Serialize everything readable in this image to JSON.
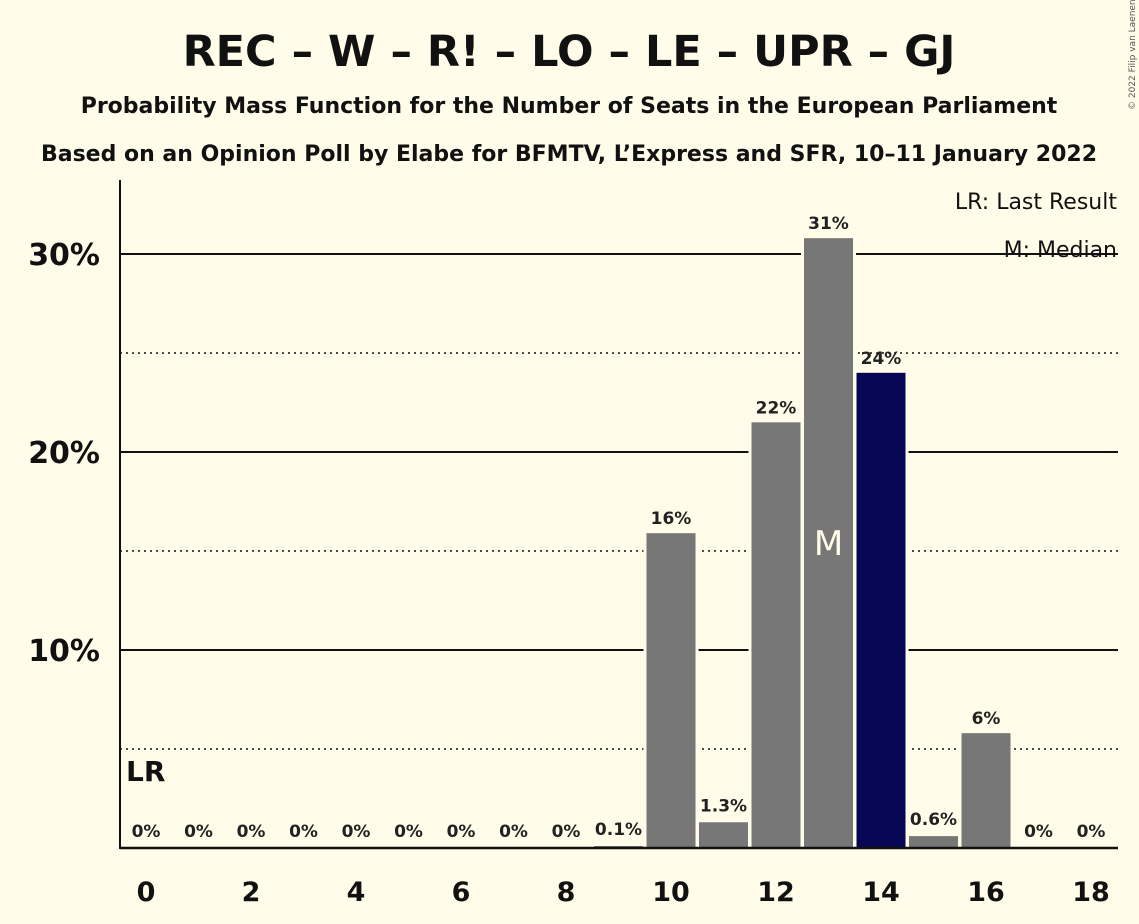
{
  "chart_data": {
    "type": "bar",
    "title": "REC – W – R! – LO – LE – UPR – GJ",
    "subtitle": "Probability Mass Function for the Number of Seats in the European Parliament",
    "subtitle2": "Based on an Opinion Poll by Elabe for BFMTV, L’Express and SFR, 10–11 January 2022",
    "copyright": "© 2022 Filip van Laenen",
    "x": [
      0,
      1,
      2,
      3,
      4,
      5,
      6,
      7,
      8,
      9,
      10,
      11,
      12,
      13,
      14,
      15,
      16,
      17,
      18
    ],
    "values": [
      0,
      0,
      0,
      0,
      0,
      0,
      0,
      0,
      0,
      0.1,
      15.9,
      1.3,
      21.5,
      30.8,
      24.0,
      0.6,
      5.8,
      0,
      0
    ],
    "data_labels": [
      "0%",
      "0%",
      "0%",
      "0%",
      "0%",
      "0%",
      "0%",
      "0%",
      "0%",
      "0.1%",
      "16%",
      "1.3%",
      "22%",
      "31%",
      "24%",
      "0.6%",
      "6%",
      "0%",
      "0%"
    ],
    "x_tick_labels": [
      "0",
      "2",
      "4",
      "6",
      "8",
      "10",
      "12",
      "14",
      "16",
      "18"
    ],
    "x_tick_values": [
      0,
      2,
      4,
      6,
      8,
      10,
      12,
      14,
      16,
      18
    ],
    "y_tick_labels": [
      "10%",
      "20%",
      "30%"
    ],
    "y_tick_values": [
      10,
      20,
      30
    ],
    "y_minor_gridlines": [
      5,
      15,
      25
    ],
    "ylim": [
      0,
      33.5
    ],
    "xlim": [
      -0.5,
      18.5
    ],
    "median": 13,
    "median_marker": "M",
    "last_result": 0,
    "last_result_marker": "LR",
    "highlight_seat": 14,
    "legend": [
      "LR: Last Result",
      "M: Median"
    ],
    "legend_position": "top-right",
    "colors": {
      "background": "#fffde9",
      "bar": "#777777",
      "highlight": "#070654",
      "axis": "#111111"
    }
  }
}
